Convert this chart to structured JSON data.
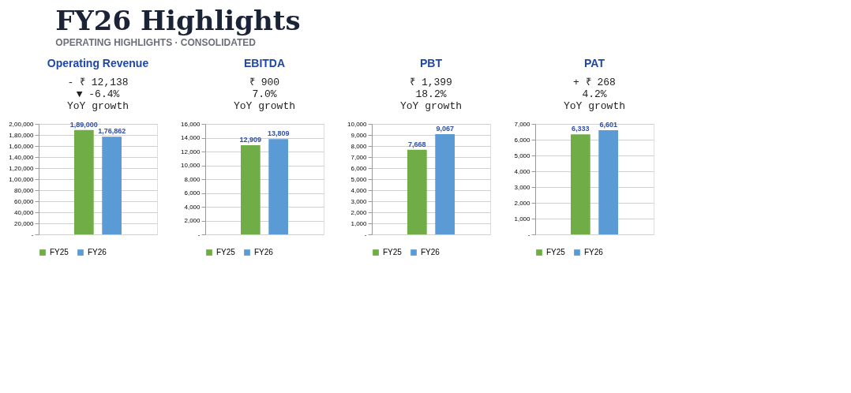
{
  "chart_data": [
    {
      "type": "other",
      "title": "FY26 Highlights",
      "subtitle": "OPERATING HIGHLIGHTS · CONSOLIDATED"
    },
    {
      "type": "bar",
      "title": "Operating Revenue",
      "annotations": [
        "- ₹ 12,138",
        "▼     -6.4%",
        "YoY growth"
      ],
      "categories": [
        null
      ],
      "series": [
        {
          "name": "FY25",
          "color": "#70ad47",
          "values": [
            189000
          ],
          "value_labels": [
            "1,89,000"
          ]
        },
        {
          "name": "FY26",
          "color": "#5b9bd5",
          "values": [
            176862
          ],
          "value_labels": [
            "1,76,862"
          ]
        }
      ],
      "ylim": [
        0,
        200000
      ],
      "yticks": [
        {
          "value": 0,
          "label": "-"
        },
        {
          "value": 20000,
          "label": "20,000"
        },
        {
          "value": 40000,
          "label": "40,000"
        },
        {
          "value": 60000,
          "label": "60,000"
        },
        {
          "value": 80000,
          "label": "80,000"
        },
        {
          "value": 100000,
          "label": "1,00,000"
        },
        {
          "value": 120000,
          "label": "1,20,000"
        },
        {
          "value": 140000,
          "label": "1,40,000"
        },
        {
          "value": 160000,
          "label": "1,60,000"
        },
        {
          "value": 180000,
          "label": "1,80,000"
        },
        {
          "value": 200000,
          "label": "2,00,000"
        }
      ],
      "grid": "y",
      "legend": "bottom"
    },
    {
      "type": "bar",
      "title": "EBITDA",
      "annotations": [
        "₹ 900",
        "7.0%",
        "YoY growth"
      ],
      "categories": [
        null
      ],
      "series": [
        {
          "name": "FY25",
          "color": "#70ad47",
          "values": [
            12909
          ],
          "value_labels": [
            "12,909"
          ]
        },
        {
          "name": "FY26",
          "color": "#5b9bd5",
          "values": [
            13809
          ],
          "value_labels": [
            "13,809"
          ]
        }
      ],
      "ylim": [
        0,
        16000
      ],
      "yticks": [
        {
          "value": 0,
          "label": "-"
        },
        {
          "value": 2000,
          "label": "2,000"
        },
        {
          "value": 4000,
          "label": "4,000"
        },
        {
          "value": 6000,
          "label": "6,000"
        },
        {
          "value": 8000,
          "label": "8,000"
        },
        {
          "value": 10000,
          "label": "10,000"
        },
        {
          "value": 12000,
          "label": "12,000"
        },
        {
          "value": 14000,
          "label": "14,000"
        },
        {
          "value": 16000,
          "label": "16,000"
        }
      ],
      "grid": "y",
      "legend": "bottom"
    },
    {
      "type": "bar",
      "title": "PBT",
      "annotations": [
        "₹ 1,399",
        "18.2%",
        "YoY growth"
      ],
      "categories": [
        null
      ],
      "series": [
        {
          "name": "FY25",
          "color": "#70ad47",
          "values": [
            7668
          ],
          "value_labels": [
            "7,668"
          ]
        },
        {
          "name": "FY26",
          "color": "#5b9bd5",
          "values": [
            9067
          ],
          "value_labels": [
            "9,067"
          ]
        }
      ],
      "ylim": [
        0,
        10000
      ],
      "yticks": [
        {
          "value": 0,
          "label": "-"
        },
        {
          "value": 1000,
          "label": "1,000"
        },
        {
          "value": 2000,
          "label": "2,000"
        },
        {
          "value": 3000,
          "label": "3,000"
        },
        {
          "value": 4000,
          "label": "4,000"
        },
        {
          "value": 5000,
          "label": "5,000"
        },
        {
          "value": 6000,
          "label": "6,000"
        },
        {
          "value": 7000,
          "label": "7,000"
        },
        {
          "value": 8000,
          "label": "8,000"
        },
        {
          "value": 9000,
          "label": "9,000"
        },
        {
          "value": 10000,
          "label": "10,000"
        }
      ],
      "grid": "y",
      "legend": "bottom"
    },
    {
      "type": "bar",
      "title": "PAT",
      "annotations": [
        "+ ₹ 268",
        "4.2%",
        "YoY growth"
      ],
      "categories": [
        null
      ],
      "series": [
        {
          "name": "FY25",
          "color": "#70ad47",
          "values": [
            6333
          ],
          "value_labels": [
            "6,333"
          ]
        },
        {
          "name": "FY26",
          "color": "#5b9bd5",
          "values": [
            6601
          ],
          "value_labels": [
            "6,601"
          ]
        }
      ],
      "ylim": [
        0,
        7000
      ],
      "yticks": [
        {
          "value": 0,
          "label": "-"
        },
        {
          "value": 1000,
          "label": "1,000"
        },
        {
          "value": 2000,
          "label": "2,000"
        },
        {
          "value": 3000,
          "label": "3,000"
        },
        {
          "value": 4000,
          "label": "4,000"
        },
        {
          "value": 5000,
          "label": "5,000"
        },
        {
          "value": 6000,
          "label": "6,000"
        },
        {
          "value": 7000,
          "label": "7,000"
        }
      ],
      "grid": "y",
      "legend": "bottom"
    }
  ]
}
